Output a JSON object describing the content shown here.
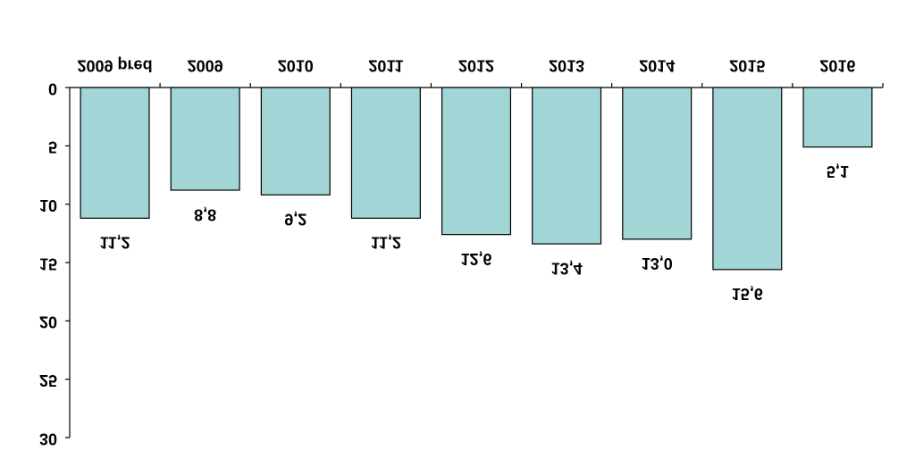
{
  "chart_data": {
    "type": "bar",
    "categories": [
      "2009 pred",
      "2009",
      "2010",
      "2011",
      "2012",
      "2013",
      "2014",
      "2015",
      "2016"
    ],
    "values": [
      11.2,
      8.8,
      9.2,
      11.2,
      12.6,
      13.4,
      13.0,
      15.6,
      5.1
    ],
    "value_labels": [
      "11,2",
      "8,8",
      "9,2",
      "11,2",
      "12,6",
      "13,4",
      "13,0",
      "15,6",
      "5,1"
    ],
    "color": "#a2d5d5",
    "ylim": [
      0,
      30
    ],
    "yticks": [
      0,
      5,
      10,
      15,
      20,
      25,
      30
    ],
    "grid": false
  }
}
